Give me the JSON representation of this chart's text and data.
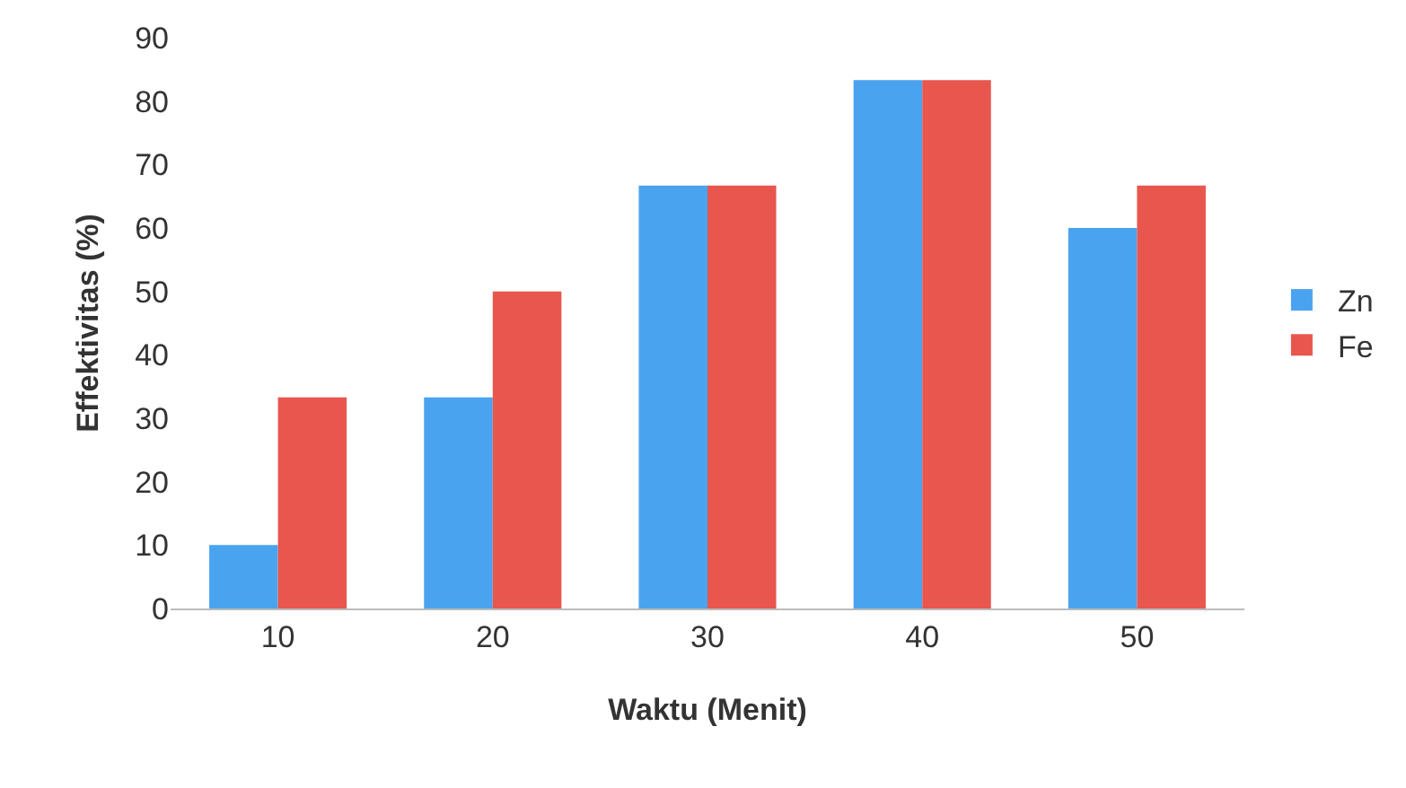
{
  "chart_data": {
    "type": "bar",
    "xlabel": "Waktu (Menit)",
    "ylabel": "Effektivitas (%)",
    "categories": [
      "10",
      "20",
      "30",
      "40",
      "50"
    ],
    "series": [
      {
        "name": "Zn",
        "color": "#4aa3ef",
        "values": [
          10,
          33.3,
          66.7,
          83.3,
          60
        ]
      },
      {
        "name": "Fe",
        "color": "#e8564e",
        "values": [
          33.3,
          50,
          66.7,
          83.3,
          66.7
        ]
      }
    ],
    "ylim": [
      0,
      90
    ],
    "yticks": [
      0,
      10,
      20,
      30,
      40,
      50,
      60,
      70,
      80,
      90
    ],
    "grid": false,
    "legend": "right"
  }
}
